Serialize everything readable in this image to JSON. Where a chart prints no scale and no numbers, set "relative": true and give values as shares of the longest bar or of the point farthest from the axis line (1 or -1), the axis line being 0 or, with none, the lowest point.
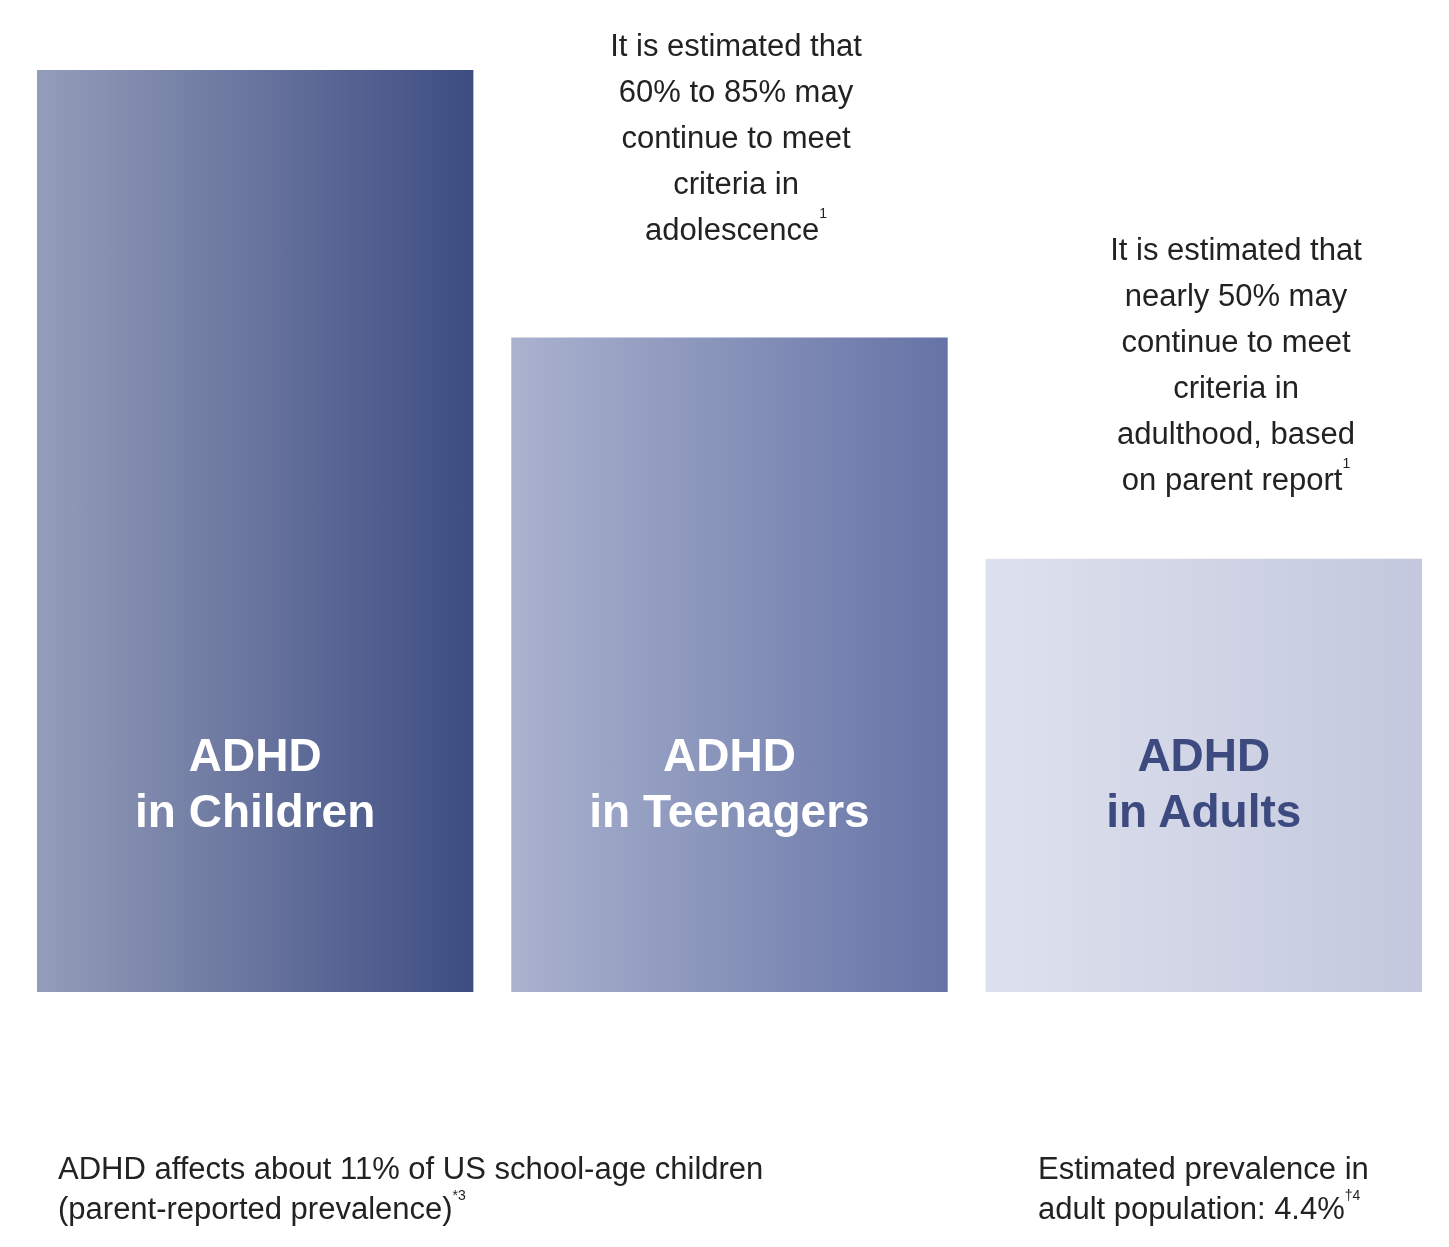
{
  "chart_data": {
    "type": "bar",
    "relative": true,
    "categories": [
      "ADHD\nin Children",
      "ADHD\nin Teenagers",
      "ADHD\nin Adults"
    ],
    "values": [
      1,
      0.71,
      0.47
    ],
    "colors": [
      "#3d4c82",
      "#6573a6",
      "#c3c8de"
    ],
    "grid": false,
    "annotations": [
      "It is estimated that\n60% to 85% may\ncontinue to meet\ncriteria in\nadolescence$^{1}$",
      "It is estimated that\nnearly 50% may\ncontinue to meet\ncriteria in\nadulthood, based\non parent report$^{1}$",
      "ADHD affects about 11% of US school-age children\n(parent-reported prevalence)$^{*3}$",
      "Estimated prevalence in\nadult population: 4.4%$^{†4}$"
    ]
  }
}
